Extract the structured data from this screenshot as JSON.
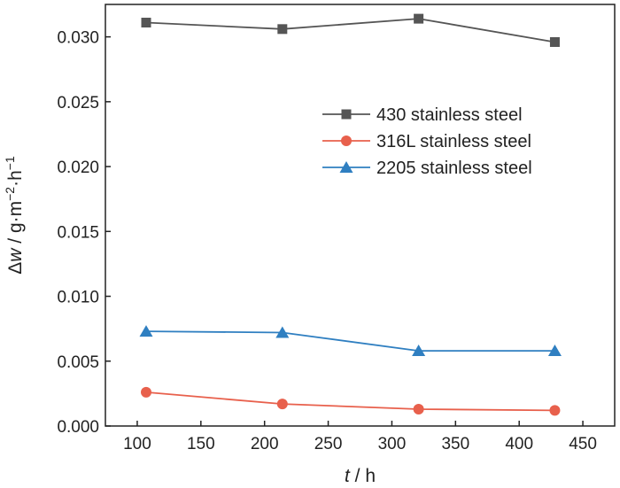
{
  "chart_data": {
    "type": "line",
    "title": "",
    "xlabel": {
      "var": "t",
      "sep": " / ",
      "unit": "h"
    },
    "ylabel": {
      "delta": "Δ",
      "var": "w",
      "sep": " / ",
      "unit": "g·m",
      "exp1": "−2",
      "mid": "·h",
      "exp2": "−1"
    },
    "xlim": [
      75,
      475
    ],
    "ylim": [
      0,
      0.0325
    ],
    "xticks": [
      100,
      150,
      200,
      250,
      300,
      350,
      400,
      450
    ],
    "yticks": [
      0.0,
      0.005,
      0.01,
      0.015,
      0.02,
      0.025,
      0.03
    ],
    "ytick_labels": [
      "0.000",
      "0.005",
      "0.010",
      "0.015",
      "0.020",
      "0.025",
      "0.030"
    ],
    "x": [
      107,
      214,
      321,
      428
    ],
    "series": [
      {
        "name": "430 stainless steel",
        "marker": "square",
        "color": "#555555",
        "values": [
          0.0311,
          0.0306,
          0.0314,
          0.0296
        ]
      },
      {
        "name": "316L stainless steel",
        "marker": "circle",
        "color": "#e8604c",
        "values": [
          0.0026,
          0.0017,
          0.0013,
          0.0012
        ]
      },
      {
        "name": "2205 stainless steel",
        "marker": "triangle",
        "color": "#2f7fc1",
        "values": [
          0.0073,
          0.0072,
          0.0058,
          0.0058
        ]
      }
    ],
    "grid": false,
    "legend_position": "upper-right"
  }
}
